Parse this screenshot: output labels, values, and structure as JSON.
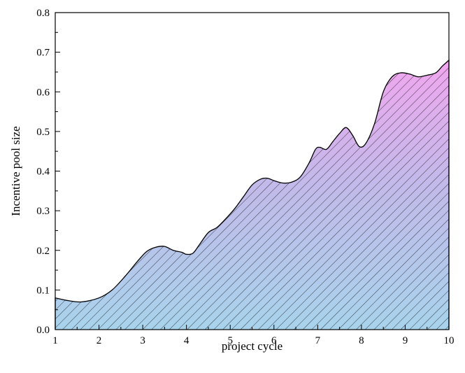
{
  "chart_data": {
    "type": "area",
    "xlabel": "project cycle",
    "ylabel": "Incentive pool size",
    "xlim": [
      1,
      10
    ],
    "ylim": [
      0,
      0.8
    ],
    "x_ticks": [
      "1",
      "2",
      "3",
      "4",
      "5",
      "6",
      "7",
      "8",
      "9",
      "10"
    ],
    "y_ticks": [
      "0.0",
      "0.1",
      "0.2",
      "0.3",
      "0.4",
      "0.5",
      "0.6",
      "0.7",
      "0.8"
    ],
    "grid": false,
    "fill": "hatched vertical gradient",
    "colors": {
      "gradient_top": "#f2a6ef",
      "gradient_mid": "#c3b9ea",
      "gradient_bottom": "#a8d3ec",
      "line": "#000000",
      "hatch": "#2b2b2b"
    },
    "x": [
      1.0,
      1.3,
      1.6,
      2.0,
      2.3,
      2.6,
      2.9,
      3.1,
      3.3,
      3.5,
      3.7,
      3.9,
      4.0,
      4.15,
      4.3,
      4.5,
      4.7,
      4.9,
      5.1,
      5.3,
      5.5,
      5.7,
      5.85,
      6.0,
      6.2,
      6.4,
      6.6,
      6.8,
      6.95,
      7.05,
      7.2,
      7.35,
      7.5,
      7.65,
      7.8,
      7.95,
      8.1,
      8.3,
      8.5,
      8.7,
      8.9,
      9.1,
      9.3,
      9.5,
      9.7,
      9.85,
      10.0
    ],
    "y": [
      0.08,
      0.073,
      0.07,
      0.08,
      0.1,
      0.135,
      0.175,
      0.198,
      0.208,
      0.21,
      0.2,
      0.195,
      0.19,
      0.193,
      0.215,
      0.245,
      0.258,
      0.28,
      0.305,
      0.335,
      0.365,
      0.38,
      0.382,
      0.376,
      0.37,
      0.372,
      0.385,
      0.42,
      0.455,
      0.46,
      0.455,
      0.475,
      0.495,
      0.51,
      0.49,
      0.462,
      0.47,
      0.52,
      0.6,
      0.638,
      0.648,
      0.645,
      0.638,
      0.642,
      0.648,
      0.665,
      0.68
    ]
  }
}
